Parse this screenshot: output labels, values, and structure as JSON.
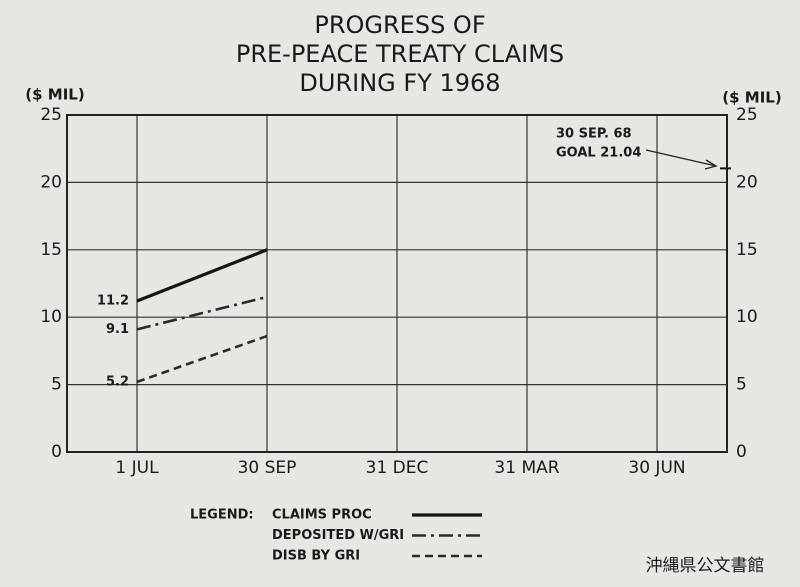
{
  "chart_data": {
    "type": "line",
    "title": [
      "PROGRESS OF",
      "PRE-PEACE TREATY CLAIMS",
      "DURING FY 1968"
    ],
    "y_label": "($ MIL)",
    "y2_label": "($ MIL)",
    "categories": [
      "1 JUL",
      "30 SEP",
      "31 DEC",
      "31 MAR",
      "30 JUN"
    ],
    "series": [
      {
        "name": "CLAIMS PROC",
        "color": "#151515",
        "dash": "solid",
        "values": [
          11.2,
          15.0,
          null,
          null,
          null
        ]
      },
      {
        "name": "DEPOSITED W/GRI",
        "color": "#2a2a2a",
        "dash": "dash-dot",
        "values": [
          9.1,
          11.5,
          null,
          null,
          null
        ]
      },
      {
        "name": "DISB BY GRI",
        "color": "#2a2a2a",
        "dash": "dashed",
        "values": [
          5.2,
          8.6,
          null,
          null,
          null
        ]
      }
    ],
    "ylim": [
      0,
      25
    ],
    "yticks": [
      0,
      5,
      10,
      15,
      20,
      25
    ],
    "y2lim": [
      0,
      25
    ],
    "y2ticks": [
      0,
      5,
      10,
      15,
      20,
      25
    ],
    "grid": true,
    "goal": {
      "lines": [
        "30 SEP. 68",
        "GOAL 21.04"
      ],
      "value": 21.04
    },
    "legend_title": "LEGEND:",
    "watermark": "沖縄県公文書館"
  }
}
